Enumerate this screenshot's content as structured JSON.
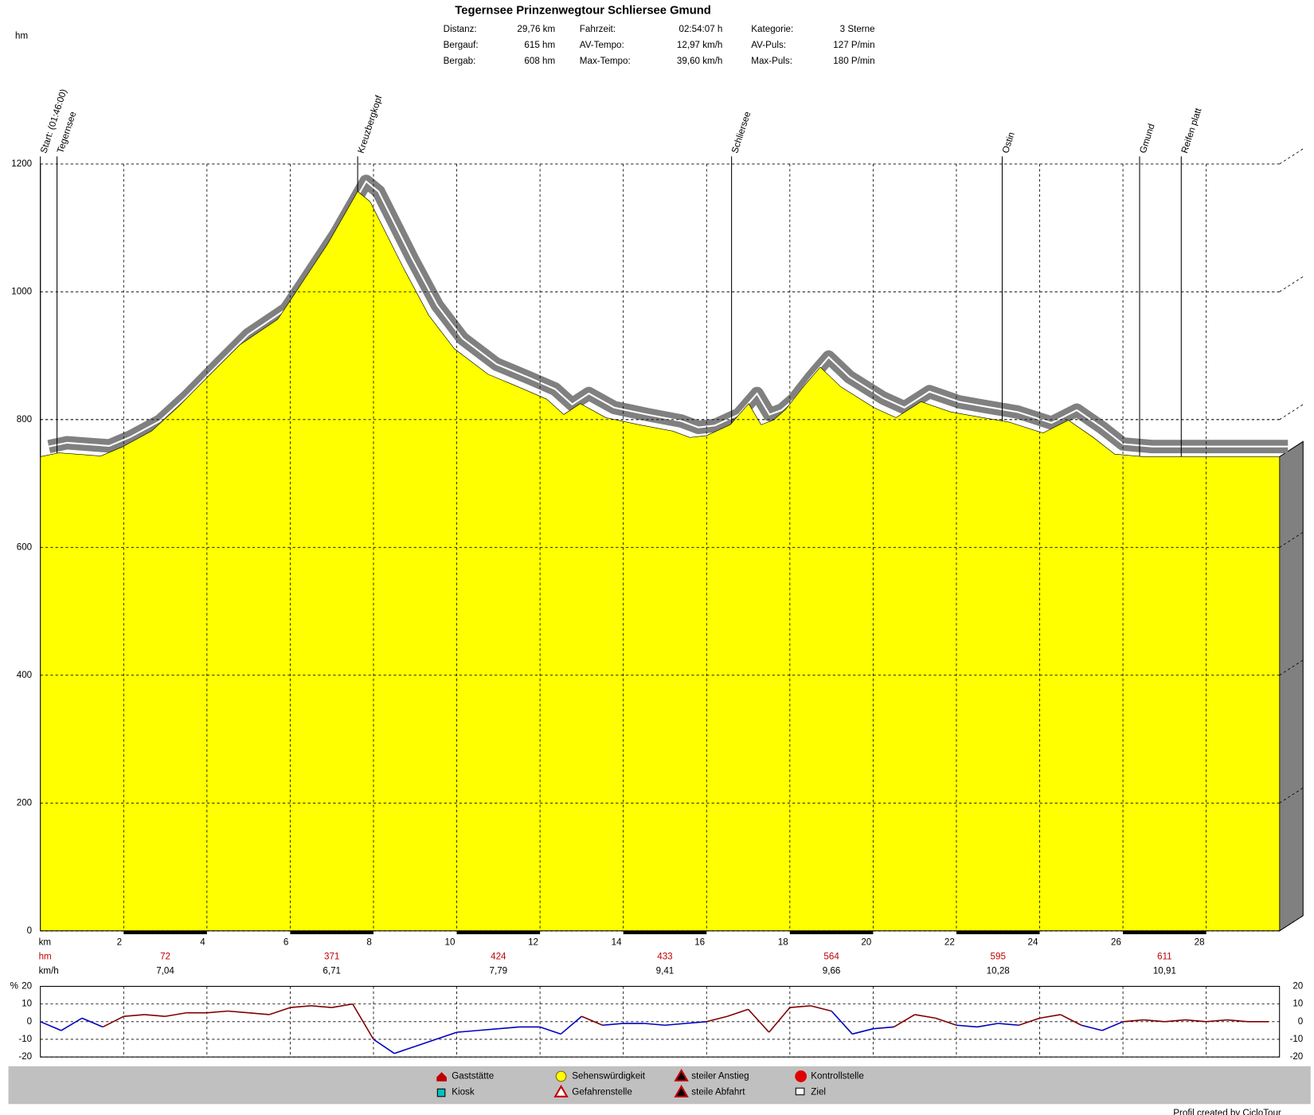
{
  "header": {
    "title": "Tegernsee Prinzenwegtour Schliersee Gmund",
    "stats": [
      [
        [
          "Distanz:",
          "29,76 km"
        ],
        [
          "Fahrzeit:",
          "02:54:07 h"
        ],
        [
          "Kategorie:",
          "3 Sterne"
        ]
      ],
      [
        [
          "Bergauf:",
          "615 hm"
        ],
        [
          "AV-Tempo:",
          "12,97 km/h"
        ],
        [
          "AV-Puls:",
          "127 P/min"
        ]
      ],
      [
        [
          "Bergab:",
          "608 hm"
        ],
        [
          "Max-Tempo:",
          "39,60 km/h"
        ],
        [
          "Max-Puls:",
          "180 P/min"
        ]
      ]
    ]
  },
  "chart_data": [
    {
      "type": "area",
      "ylabel": "hm",
      "xlabel": "km",
      "color": "#ffff00",
      "shadow_color": "#808080",
      "grid": true,
      "x": [
        0,
        0.44,
        1.45,
        1.96,
        2.67,
        3.31,
        4.08,
        4.79,
        5.7,
        6.1,
        6.9,
        7.62,
        7.92,
        8.73,
        9.33,
        9.94,
        10.75,
        11.56,
        12.16,
        12.57,
        12.97,
        13.58,
        14.38,
        15.19,
        15.6,
        16.0,
        16.57,
        17.01,
        17.31,
        17.6,
        17.9,
        18.32,
        18.73,
        19.23,
        20.04,
        20.55,
        21.15,
        21.86,
        22.46,
        23.27,
        24.08,
        24.69,
        25.29,
        25.8,
        26.5,
        28.32,
        29.76
      ],
      "values": [
        742,
        748,
        743,
        757,
        782,
        820,
        871,
        917,
        957,
        996,
        1075,
        1157,
        1141,
        1036,
        963,
        911,
        871,
        849,
        832,
        808,
        825,
        803,
        792,
        782,
        772,
        775,
        792,
        825,
        792,
        799,
        816,
        851,
        882,
        851,
        818,
        803,
        828,
        812,
        805,
        796,
        779,
        799,
        772,
        746,
        742,
        742,
        742
      ],
      "xlim": [
        0,
        29.76
      ],
      "ylim": [
        0,
        1200
      ],
      "xticks": [
        2,
        4,
        6,
        8,
        10,
        12,
        14,
        16,
        18,
        20,
        22,
        24,
        26,
        28
      ],
      "yticks": [
        0,
        200,
        400,
        600,
        800,
        1000,
        1200
      ],
      "waypoints": [
        {
          "x": 0,
          "label": "Start: (01:46:00)"
        },
        {
          "x": 0.4,
          "label": "Tegernsee"
        },
        {
          "x": 7.62,
          "label": "Kreuzbergkopf"
        },
        {
          "x": 16.6,
          "label": "Schliersee"
        },
        {
          "x": 23.1,
          "label": "Ostin"
        },
        {
          "x": 26.4,
          "label": "Gmund"
        },
        {
          "x": 27.4,
          "label": "Reifen platt"
        }
      ],
      "summary": {
        "hm_label": "hm",
        "speed_label": "km/h",
        "hm": [
          "72",
          "371",
          "424",
          "433",
          "564",
          "595",
          "611"
        ],
        "speed": [
          "7,04",
          "6,71",
          "7,79",
          "9,41",
          "9,66",
          "10,28",
          "10,91"
        ]
      }
    },
    {
      "type": "line",
      "ylabel": "%",
      "colors": {
        "up": "#800000",
        "down": "#0000c0"
      },
      "x": [
        0,
        0.5,
        1,
        1.5,
        2,
        2.5,
        3,
        3.5,
        4,
        4.5,
        5,
        5.5,
        6,
        6.5,
        7,
        7.5,
        8,
        8.5,
        9,
        9.5,
        10,
        10.5,
        11,
        11.5,
        12,
        12.5,
        13,
        13.5,
        14,
        14.5,
        15,
        15.5,
        16,
        16.5,
        17,
        17.5,
        18,
        18.5,
        19,
        19.5,
        20,
        20.5,
        21,
        21.5,
        22,
        22.5,
        23,
        23.5,
        24,
        24.5,
        25,
        25.5,
        26,
        26.5,
        27,
        27.5,
        28,
        28.5,
        29,
        29.5
      ],
      "values": [
        0,
        -5,
        2,
        -3,
        3,
        4,
        3,
        5,
        5,
        6,
        5,
        4,
        8,
        9,
        8,
        10,
        -10,
        -18,
        -14,
        -10,
        -6,
        -5,
        -4,
        -3,
        -3,
        -7,
        3,
        -2,
        -1,
        -1,
        -2,
        -1,
        0,
        3,
        7,
        -6,
        8,
        9,
        6,
        -7,
        -4,
        -3,
        4,
        2,
        -2,
        -3,
        -1,
        -2,
        2,
        4,
        -2,
        -5,
        0,
        1,
        0,
        1,
        0,
        1,
        0,
        0
      ],
      "ylim": [
        -20,
        20
      ],
      "yticks": [
        20,
        10,
        0,
        -10,
        -20
      ]
    }
  ],
  "legend": [
    "Gaststätte",
    "Kiosk",
    "Sehenswürdigkeit",
    "Gefahrenstelle",
    "steiler Anstieg",
    "steile Abfahrt",
    "Kontrollstelle",
    "Ziel"
  ],
  "footer": "Profil created by CicloTour"
}
